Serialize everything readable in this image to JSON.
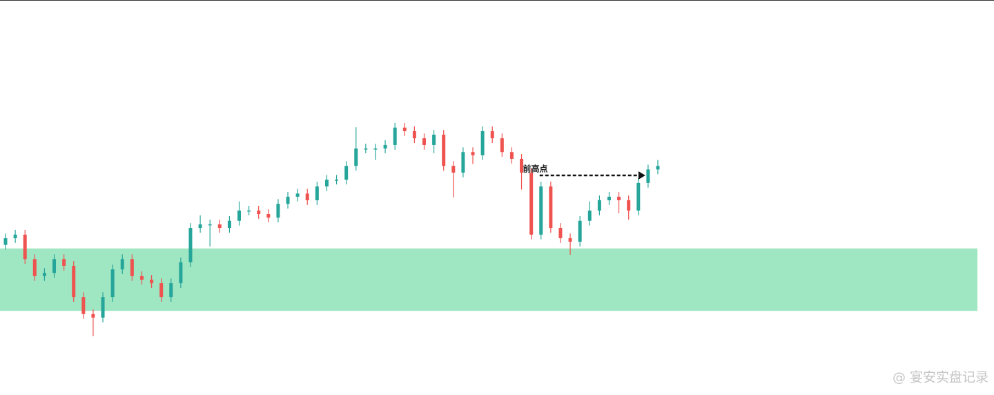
{
  "chart_data": {
    "type": "candlestick",
    "up_color": "#26a69a",
    "down_color": "#ef5350",
    "ylim": [
      0,
      100
    ],
    "open": [
      38.0,
      39.7,
      40.6,
      34.4,
      30.1,
      30.9,
      34.4,
      32.7,
      24.8,
      20.5,
      19.6,
      24.8,
      31.8,
      34.4,
      30.1,
      29.2,
      28.3,
      24.8,
      28.3,
      33.6,
      42.3,
      43.2,
      43.2,
      42.3,
      44.1,
      46.7,
      46.7,
      45.8,
      44.9,
      48.4,
      50.2,
      51.0,
      49.3,
      52.8,
      54.5,
      54.5,
      58.0,
      62.4,
      62.4,
      62.4,
      63.3,
      67.7,
      66.8,
      65.0,
      63.3,
      65.9,
      58.0,
      56.3,
      61.5,
      60.7,
      66.8,
      65.0,
      61.5,
      59.8,
      56.3,
      40.6,
      52.8,
      42.3,
      39.7,
      38.8,
      44.1,
      46.7,
      49.3,
      50.2,
      49.3,
      46.7,
      53.7,
      57.1
    ],
    "high": [
      40.9,
      41.8,
      41.8,
      35.6,
      32.1,
      35.6,
      35.6,
      33.9,
      26.0,
      21.7,
      26.0,
      33.0,
      35.6,
      35.6,
      31.3,
      30.4,
      29.5,
      29.5,
      34.8,
      43.5,
      45.5,
      44.4,
      44.4,
      45.3,
      49.0,
      47.9,
      47.9,
      47.0,
      49.6,
      51.4,
      52.2,
      52.2,
      54.0,
      55.7,
      55.7,
      59.2,
      67.8,
      63.6,
      63.6,
      64.5,
      68.9,
      68.9,
      68.0,
      66.2,
      67.1,
      67.1,
      59.2,
      62.7,
      62.7,
      68.0,
      68.0,
      66.2,
      62.7,
      61.0,
      57.5,
      54.0,
      54.0,
      43.5,
      40.9,
      45.3,
      49.0,
      50.5,
      51.4,
      51.4,
      50.5,
      54.9,
      58.3,
      59.5
    ],
    "low": [
      36.8,
      38.5,
      33.2,
      28.9,
      28.9,
      29.7,
      31.5,
      23.6,
      19.3,
      14.9,
      18.4,
      23.6,
      30.6,
      28.9,
      28.0,
      27.1,
      23.6,
      23.6,
      27.1,
      32.4,
      41.1,
      37.6,
      41.1,
      41.1,
      42.9,
      45.5,
      44.6,
      43.7,
      43.7,
      47.2,
      49.0,
      48.1,
      48.1,
      51.6,
      53.3,
      53.3,
      56.8,
      61.2,
      59.5,
      61.2,
      62.1,
      65.6,
      63.8,
      62.1,
      61.2,
      56.8,
      50.0,
      55.1,
      58.5,
      59.5,
      63.8,
      60.3,
      58.6,
      52.0,
      39.4,
      39.4,
      41.1,
      38.5,
      35.5,
      37.6,
      42.9,
      45.5,
      48.1,
      46.0,
      44.4,
      45.5,
      52.5,
      55.9
    ],
    "close": [
      39.7,
      40.6,
      34.4,
      30.1,
      30.9,
      34.4,
      32.7,
      24.8,
      20.5,
      19.6,
      24.8,
      31.8,
      34.4,
      30.1,
      29.2,
      28.3,
      24.8,
      28.3,
      33.6,
      42.3,
      43.2,
      43.2,
      42.3,
      44.1,
      46.7,
      46.7,
      45.8,
      44.9,
      48.4,
      50.2,
      51.0,
      49.3,
      52.8,
      54.5,
      54.5,
      58.0,
      62.4,
      62.4,
      62.4,
      63.3,
      67.7,
      66.8,
      65.0,
      63.3,
      65.9,
      58.0,
      56.3,
      61.5,
      60.7,
      66.8,
      65.0,
      61.5,
      59.8,
      56.3,
      40.6,
      52.8,
      42.3,
      39.7,
      38.8,
      44.1,
      46.7,
      49.3,
      50.2,
      49.3,
      46.7,
      53.7,
      57.1,
      58.0
    ],
    "zone": {
      "low": 21.3,
      "high": 37.1,
      "color": "#9fe6c2"
    },
    "annotation": {
      "text": "前高点",
      "value": 55.6
    },
    "watermark": "@ 宴安实盘记录"
  }
}
